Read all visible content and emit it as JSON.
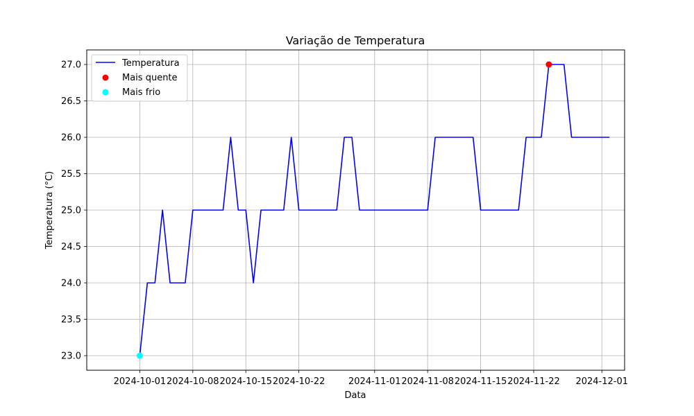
{
  "chart_data": {
    "type": "line",
    "title": "Variação de Temperatura",
    "xlabel": "Data",
    "ylabel": "Temperatura (°C)",
    "xlim": [
      "2024-09-24",
      "2024-12-04"
    ],
    "ylim": [
      22.8,
      27.2
    ],
    "grid": true,
    "legend_position": "top-left",
    "x_ticks": [
      "2024-10-01",
      "2024-10-08",
      "2024-10-15",
      "2024-10-22",
      "2024-11-01",
      "2024-11-08",
      "2024-11-15",
      "2024-11-22",
      "2024-12-01"
    ],
    "y_ticks": [
      "23.0",
      "23.5",
      "24.0",
      "24.5",
      "25.0",
      "25.5",
      "26.0",
      "26.5",
      "27.0"
    ],
    "series": [
      {
        "name": "Temperatura",
        "color": "#0000ff",
        "points": [
          [
            "2024-10-01",
            23
          ],
          [
            "2024-10-02",
            24
          ],
          [
            "2024-10-03",
            24
          ],
          [
            "2024-10-04",
            25
          ],
          [
            "2024-10-05",
            24
          ],
          [
            "2024-10-06",
            24
          ],
          [
            "2024-10-07",
            24
          ],
          [
            "2024-10-08",
            25
          ],
          [
            "2024-10-09",
            25
          ],
          [
            "2024-10-10",
            25
          ],
          [
            "2024-10-11",
            25
          ],
          [
            "2024-10-12",
            25
          ],
          [
            "2024-10-13",
            26
          ],
          [
            "2024-10-14",
            25
          ],
          [
            "2024-10-15",
            25
          ],
          [
            "2024-10-16",
            24
          ],
          [
            "2024-10-17",
            25
          ],
          [
            "2024-10-18",
            25
          ],
          [
            "2024-10-19",
            25
          ],
          [
            "2024-10-20",
            25
          ],
          [
            "2024-10-21",
            26
          ],
          [
            "2024-10-22",
            25
          ],
          [
            "2024-10-23",
            25
          ],
          [
            "2024-10-24",
            25
          ],
          [
            "2024-10-25",
            25
          ],
          [
            "2024-10-26",
            25
          ],
          [
            "2024-10-27",
            25
          ],
          [
            "2024-10-28",
            26
          ],
          [
            "2024-10-29",
            26
          ],
          [
            "2024-10-30",
            25
          ],
          [
            "2024-10-31",
            25
          ],
          [
            "2024-11-01",
            25
          ],
          [
            "2024-11-02",
            25
          ],
          [
            "2024-11-03",
            25
          ],
          [
            "2024-11-04",
            25
          ],
          [
            "2024-11-05",
            25
          ],
          [
            "2024-11-06",
            25
          ],
          [
            "2024-11-07",
            25
          ],
          [
            "2024-11-08",
            25
          ],
          [
            "2024-11-09",
            26
          ],
          [
            "2024-11-10",
            26
          ],
          [
            "2024-11-11",
            26
          ],
          [
            "2024-11-12",
            26
          ],
          [
            "2024-11-13",
            26
          ],
          [
            "2024-11-14",
            26
          ],
          [
            "2024-11-15",
            25
          ],
          [
            "2024-11-16",
            25
          ],
          [
            "2024-11-17",
            25
          ],
          [
            "2024-11-18",
            25
          ],
          [
            "2024-11-19",
            25
          ],
          [
            "2024-11-20",
            25
          ],
          [
            "2024-11-21",
            26
          ],
          [
            "2024-11-22",
            26
          ],
          [
            "2024-11-23",
            26
          ],
          [
            "2024-11-24",
            27
          ],
          [
            "2024-11-25",
            27
          ],
          [
            "2024-11-26",
            27
          ],
          [
            "2024-11-27",
            26
          ],
          [
            "2024-11-28",
            26
          ],
          [
            "2024-11-29",
            26
          ],
          [
            "2024-11-30",
            26
          ],
          [
            "2024-12-01",
            26
          ],
          [
            "2024-12-02",
            26
          ]
        ]
      },
      {
        "name": "Mais quente",
        "type": "scatter",
        "color": "#ff0000",
        "points": [
          [
            "2024-11-24",
            27
          ]
        ]
      },
      {
        "name": "Mais frio",
        "type": "scatter",
        "color": "#00ffff",
        "points": [
          [
            "2024-10-01",
            23
          ]
        ]
      }
    ]
  }
}
